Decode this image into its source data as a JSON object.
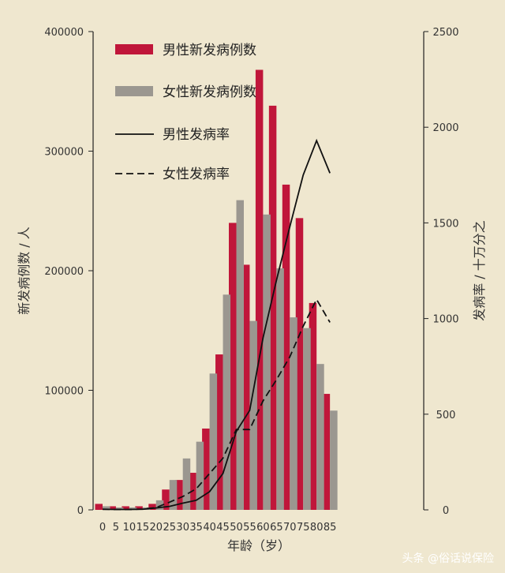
{
  "chart_data": {
    "type": "bar",
    "categories": [
      "0",
      "5",
      "10",
      "15",
      "20",
      "25",
      "30",
      "35",
      "40",
      "45",
      "50",
      "55",
      "60",
      "65",
      "70",
      "75",
      "80",
      "85"
    ],
    "series": [
      {
        "name": "男性新发病例数",
        "kind": "bar",
        "axis": "left",
        "color": "#c0163a",
        "values": [
          5000,
          3000,
          3000,
          3000,
          5000,
          17000,
          25000,
          31000,
          68000,
          130000,
          240000,
          205000,
          368000,
          338000,
          272000,
          244000,
          173000,
          97000
        ]
      },
      {
        "name": "女性新发病例数",
        "kind": "bar",
        "axis": "left",
        "color": "#9b9790",
        "values": [
          3000,
          2000,
          2000,
          2000,
          8000,
          25000,
          43000,
          57000,
          114000,
          180000,
          259000,
          158000,
          247000,
          202000,
          161000,
          152000,
          122000,
          83000
        ]
      },
      {
        "name": "男性发病率",
        "kind": "line",
        "axis": "right",
        "style": "solid",
        "color": "#111111",
        "values": [
          3,
          2,
          2,
          3,
          10,
          18,
          35,
          50,
          95,
          190,
          410,
          520,
          900,
          1200,
          1480,
          1750,
          1930,
          1760
        ]
      },
      {
        "name": "女性发病率",
        "kind": "line",
        "axis": "right",
        "style": "dashed",
        "color": "#111111",
        "values": [
          3,
          2,
          2,
          4,
          12,
          40,
          70,
          110,
          190,
          270,
          420,
          420,
          570,
          680,
          800,
          960,
          1100,
          980
        ]
      }
    ],
    "left_axis": {
      "label": "新发病例数 / 人",
      "range": [
        0,
        400000
      ],
      "ticks": [
        0,
        100000,
        200000,
        300000,
        400000
      ]
    },
    "right_axis": {
      "label": "发病率 / 十万分之",
      "range": [
        0,
        2500
      ],
      "ticks": [
        0,
        500,
        1000,
        1500,
        2000,
        2500
      ]
    },
    "xlabel": "年龄（岁）",
    "legend_position": "top-left",
    "grid": false
  },
  "watermark": "头条 @俗话说保险"
}
